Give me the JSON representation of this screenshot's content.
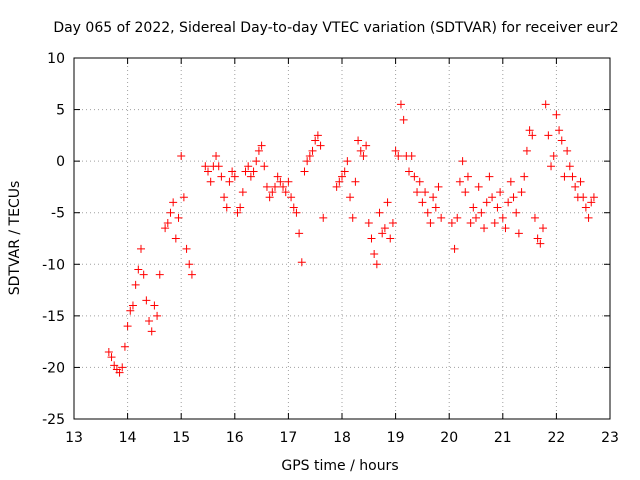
{
  "chart_data": {
    "type": "scatter",
    "title": "Day 065 of 2022, Sidereal Day-to-day VTEC variation (SDTVAR) for receiver eur2",
    "xlabel": "GPS time / hours",
    "ylabel": "SDTVAR / TECUs",
    "xlim": [
      13,
      23
    ],
    "ylim": [
      -25,
      10
    ],
    "x_ticks": [
      13,
      14,
      15,
      16,
      17,
      18,
      19,
      20,
      21,
      22,
      23
    ],
    "x_tick_labels": [
      "13",
      "14",
      "15",
      "16",
      "17",
      "18",
      "19",
      "20",
      "21",
      "22",
      "23"
    ],
    "y_ticks": [
      -25,
      -20,
      -15,
      -10,
      -5,
      0,
      5,
      10
    ],
    "y_tick_labels": [
      "-25",
      "-20",
      "-15",
      "-10",
      "-5",
      "0",
      "5",
      "10"
    ],
    "grid": true,
    "marker": "plus",
    "color": "#ff0000",
    "series": [
      {
        "name": "SDTVAR",
        "points": [
          [
            13.65,
            -18.5
          ],
          [
            13.7,
            -19.0
          ],
          [
            13.75,
            -19.8
          ],
          [
            13.8,
            -20.2
          ],
          [
            13.85,
            -20.5
          ],
          [
            13.9,
            -20.0
          ],
          [
            13.95,
            -18.0
          ],
          [
            14.0,
            -16.0
          ],
          [
            14.05,
            -14.5
          ],
          [
            14.1,
            -14.0
          ],
          [
            14.15,
            -12.0
          ],
          [
            14.2,
            -10.5
          ],
          [
            14.25,
            -8.5
          ],
          [
            14.3,
            -11.0
          ],
          [
            14.35,
            -13.5
          ],
          [
            14.4,
            -15.5
          ],
          [
            14.45,
            -16.5
          ],
          [
            14.5,
            -14.0
          ],
          [
            14.55,
            -15.0
          ],
          [
            14.6,
            -11.0
          ],
          [
            14.7,
            -6.5
          ],
          [
            14.75,
            -6.0
          ],
          [
            14.8,
            -5.0
          ],
          [
            14.85,
            -4.0
          ],
          [
            14.9,
            -7.5
          ],
          [
            14.95,
            -5.5
          ],
          [
            15.0,
            0.5
          ],
          [
            15.05,
            -3.5
          ],
          [
            15.1,
            -8.5
          ],
          [
            15.15,
            -10.0
          ],
          [
            15.2,
            -11.0
          ],
          [
            15.45,
            -0.5
          ],
          [
            15.5,
            -1.0
          ],
          [
            15.55,
            -2.0
          ],
          [
            15.6,
            -0.5
          ],
          [
            15.65,
            0.5
          ],
          [
            15.7,
            -0.5
          ],
          [
            15.75,
            -1.5
          ],
          [
            15.8,
            -3.5
          ],
          [
            15.85,
            -4.5
          ],
          [
            15.9,
            -2.0
          ],
          [
            15.95,
            -1.0
          ],
          [
            16.0,
            -1.5
          ],
          [
            16.05,
            -5.0
          ],
          [
            16.1,
            -4.5
          ],
          [
            16.15,
            -3.0
          ],
          [
            16.2,
            -1.0
          ],
          [
            16.25,
            -0.5
          ],
          [
            16.3,
            -1.5
          ],
          [
            16.35,
            -1.0
          ],
          [
            16.4,
            0.0
          ],
          [
            16.45,
            1.0
          ],
          [
            16.5,
            1.5
          ],
          [
            16.55,
            -0.5
          ],
          [
            16.6,
            -2.5
          ],
          [
            16.65,
            -3.5
          ],
          [
            16.7,
            -3.0
          ],
          [
            16.75,
            -2.5
          ],
          [
            16.8,
            -1.5
          ],
          [
            16.85,
            -2.0
          ],
          [
            16.9,
            -2.5
          ],
          [
            16.95,
            -3.0
          ],
          [
            17.0,
            -2.0
          ],
          [
            17.05,
            -3.5
          ],
          [
            17.1,
            -4.5
          ],
          [
            17.15,
            -5.0
          ],
          [
            17.2,
            -7.0
          ],
          [
            17.25,
            -9.8
          ],
          [
            17.3,
            -1.0
          ],
          [
            17.35,
            0.0
          ],
          [
            17.4,
            0.5
          ],
          [
            17.45,
            1.0
          ],
          [
            17.5,
            2.0
          ],
          [
            17.55,
            2.5
          ],
          [
            17.6,
            1.5
          ],
          [
            17.65,
            -5.5
          ],
          [
            17.9,
            -2.5
          ],
          [
            17.95,
            -2.0
          ],
          [
            18.0,
            -1.5
          ],
          [
            18.05,
            -1.0
          ],
          [
            18.1,
            0.0
          ],
          [
            18.15,
            -3.5
          ],
          [
            18.2,
            -5.5
          ],
          [
            18.25,
            -2.0
          ],
          [
            18.3,
            2.0
          ],
          [
            18.35,
            1.0
          ],
          [
            18.4,
            0.5
          ],
          [
            18.45,
            1.5
          ],
          [
            18.5,
            -6.0
          ],
          [
            18.55,
            -7.5
          ],
          [
            18.6,
            -9.0
          ],
          [
            18.65,
            -10.0
          ],
          [
            18.7,
            -5.0
          ],
          [
            18.75,
            -7.0
          ],
          [
            18.8,
            -6.5
          ],
          [
            18.85,
            -4.0
          ],
          [
            18.9,
            -7.5
          ],
          [
            18.95,
            -6.0
          ],
          [
            19.0,
            1.0
          ],
          [
            19.05,
            0.5
          ],
          [
            19.1,
            5.5
          ],
          [
            19.15,
            4.0
          ],
          [
            19.2,
            0.5
          ],
          [
            19.25,
            -1.0
          ],
          [
            19.3,
            0.5
          ],
          [
            19.35,
            -1.5
          ],
          [
            19.4,
            -3.0
          ],
          [
            19.45,
            -2.0
          ],
          [
            19.5,
            -4.0
          ],
          [
            19.55,
            -3.0
          ],
          [
            19.6,
            -5.0
          ],
          [
            19.65,
            -6.0
          ],
          [
            19.7,
            -3.5
          ],
          [
            19.75,
            -4.5
          ],
          [
            19.8,
            -2.5
          ],
          [
            19.85,
            -5.5
          ],
          [
            20.05,
            -6.0
          ],
          [
            20.1,
            -8.5
          ],
          [
            20.15,
            -5.5
          ],
          [
            20.2,
            -2.0
          ],
          [
            20.25,
            0.0
          ],
          [
            20.3,
            -3.0
          ],
          [
            20.35,
            -1.5
          ],
          [
            20.4,
            -6.0
          ],
          [
            20.45,
            -4.5
          ],
          [
            20.5,
            -5.5
          ],
          [
            20.55,
            -2.5
          ],
          [
            20.6,
            -5.0
          ],
          [
            20.65,
            -6.5
          ],
          [
            20.7,
            -4.0
          ],
          [
            20.75,
            -1.5
          ],
          [
            20.8,
            -3.5
          ],
          [
            20.85,
            -6.0
          ],
          [
            20.9,
            -4.5
          ],
          [
            20.95,
            -3.0
          ],
          [
            21.0,
            -5.5
          ],
          [
            21.05,
            -6.5
          ],
          [
            21.1,
            -4.0
          ],
          [
            21.15,
            -2.0
          ],
          [
            21.2,
            -3.5
          ],
          [
            21.25,
            -5.0
          ],
          [
            21.3,
            -7.0
          ],
          [
            21.35,
            -3.0
          ],
          [
            21.4,
            -1.5
          ],
          [
            21.45,
            1.0
          ],
          [
            21.5,
            3.0
          ],
          [
            21.55,
            2.5
          ],
          [
            21.6,
            -5.5
          ],
          [
            21.65,
            -7.5
          ],
          [
            21.7,
            -8.0
          ],
          [
            21.75,
            -6.5
          ],
          [
            21.8,
            5.5
          ],
          [
            21.85,
            2.5
          ],
          [
            21.9,
            -0.5
          ],
          [
            21.95,
            0.5
          ],
          [
            22.0,
            4.5
          ],
          [
            22.05,
            3.0
          ],
          [
            22.1,
            2.0
          ],
          [
            22.15,
            -1.5
          ],
          [
            22.2,
            1.0
          ],
          [
            22.25,
            -0.5
          ],
          [
            22.3,
            -1.5
          ],
          [
            22.35,
            -2.5
          ],
          [
            22.4,
            -3.5
          ],
          [
            22.45,
            -2.0
          ],
          [
            22.5,
            -3.5
          ],
          [
            22.55,
            -4.5
          ],
          [
            22.6,
            -5.5
          ],
          [
            22.65,
            -4.0
          ],
          [
            22.7,
            -3.5
          ]
        ]
      }
    ]
  }
}
